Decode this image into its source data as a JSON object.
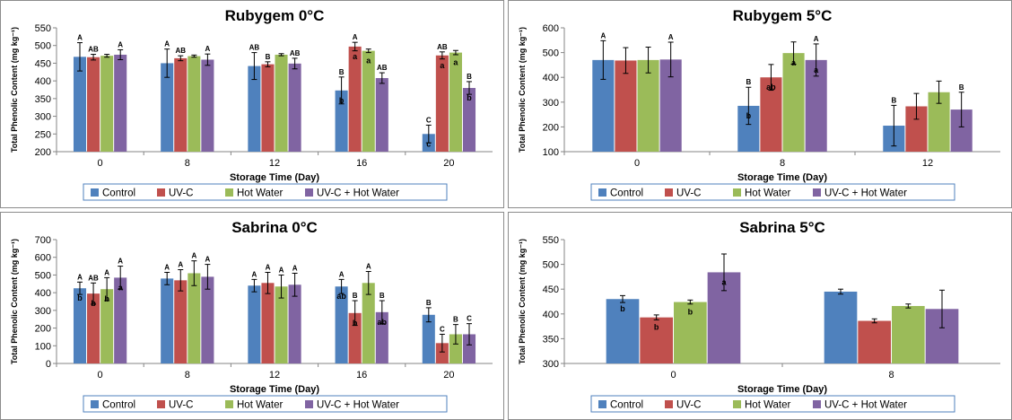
{
  "colors": {
    "Control": "#4F81BD",
    "UV-C": "#C0504D",
    "Hot Water": "#9BBB59",
    "UV-C + Hot Water": "#8064A2"
  },
  "chart_data": [
    {
      "type": "bar",
      "title": "Rubygem 0°C",
      "xlabel": "Storage Time (Day)",
      "ylabel": "Total Phenolic Content (mg kg⁻¹)",
      "ylim": [
        200,
        550
      ],
      "yticks": [
        200,
        250,
        300,
        350,
        400,
        450,
        500,
        550
      ],
      "categories": [
        "0",
        "8",
        "12",
        "16",
        "20"
      ],
      "legend": "bottom",
      "grid": false,
      "series": [
        {
          "name": "Control",
          "values": [
            468,
            450,
            442,
            373,
            250
          ],
          "errors": [
            40,
            40,
            38,
            38,
            25
          ],
          "top_labels": [
            "A",
            "A",
            "AB",
            "B",
            "C"
          ],
          "bottom_labels": [
            "",
            "",
            "",
            "b",
            "c"
          ]
        },
        {
          "name": "UV-C",
          "values": [
            467,
            464,
            447,
            497,
            472
          ],
          "errors": [
            8,
            7,
            7,
            12,
            10
          ],
          "top_labels": [
            "AB",
            "AB",
            "B",
            "A",
            "AB"
          ],
          "bottom_labels": [
            "",
            "",
            "",
            "a",
            "a"
          ]
        },
        {
          "name": "Hot Water",
          "values": [
            471,
            470,
            474,
            485,
            480
          ],
          "errors": [
            4,
            3,
            3,
            5,
            6
          ],
          "top_labels": [
            "",
            "",
            "",
            "",
            ""
          ],
          "bottom_labels": [
            "",
            "",
            "",
            "a",
            "a"
          ]
        },
        {
          "name": "UV-C + Hot Water",
          "values": [
            474,
            460,
            449,
            408,
            380
          ],
          "errors": [
            14,
            16,
            15,
            15,
            18
          ],
          "top_labels": [
            "A",
            "A",
            "AB",
            "AB",
            "B"
          ],
          "bottom_labels": [
            "",
            "",
            "",
            "",
            "b"
          ]
        }
      ]
    },
    {
      "type": "bar",
      "title": "Rubygem 5°C",
      "xlabel": "Storage Time (Day)",
      "ylabel": "Total Phenolic Content (mg kg⁻¹)",
      "ylim": [
        100,
        600
      ],
      "yticks": [
        100,
        200,
        300,
        400,
        500,
        600
      ],
      "categories": [
        "0",
        "8",
        "12"
      ],
      "legend": "bottom",
      "grid": false,
      "series": [
        {
          "name": "Control",
          "values": [
            470,
            285,
            205
          ],
          "errors": [
            78,
            75,
            82
          ],
          "top_labels": [
            "A",
            "B",
            "B"
          ],
          "bottom_labels": [
            "",
            "b",
            ""
          ]
        },
        {
          "name": "UV-C",
          "values": [
            468,
            400,
            283
          ],
          "errors": [
            52,
            52,
            52
          ],
          "top_labels": [
            "",
            "",
            ""
          ],
          "bottom_labels": [
            "",
            "ab",
            ""
          ]
        },
        {
          "name": "Hot Water",
          "values": [
            470,
            498,
            340
          ],
          "errors": [
            52,
            45,
            45
          ],
          "top_labels": [
            "",
            "",
            ""
          ],
          "bottom_labels": [
            "",
            "a",
            ""
          ]
        },
        {
          "name": "UV-C + Hot Water",
          "values": [
            472,
            470,
            270
          ],
          "errors": [
            70,
            65,
            70
          ],
          "top_labels": [
            "A",
            "A",
            "B"
          ],
          "bottom_labels": [
            "",
            "a",
            ""
          ]
        }
      ]
    },
    {
      "type": "bar",
      "title": "Sabrina 0°C",
      "xlabel": "Storage Time (Day)",
      "ylabel": "Total Phenolic Content (mg kg⁻¹)",
      "ylim": [
        0,
        700
      ],
      "yticks": [
        0,
        100,
        200,
        300,
        400,
        500,
        600,
        700
      ],
      "categories": [
        "0",
        "8",
        "12",
        "16",
        "20"
      ],
      "legend": "bottom",
      "grid": false,
      "series": [
        {
          "name": "Control",
          "values": [
            425,
            480,
            440,
            435,
            275
          ],
          "errors": [
            35,
            35,
            35,
            40,
            40
          ],
          "top_labels": [
            "A",
            "A",
            "A",
            "A",
            "B"
          ],
          "bottom_labels": [
            "b",
            "",
            "",
            "ab",
            ""
          ]
        },
        {
          "name": "UV-C",
          "values": [
            395,
            470,
            455,
            285,
            115
          ],
          "errors": [
            60,
            60,
            60,
            70,
            50
          ],
          "top_labels": [
            "AB",
            "A",
            "A",
            "B",
            "C"
          ],
          "bottom_labels": [
            "b",
            "",
            "",
            "b",
            ""
          ]
        },
        {
          "name": "Hot Water",
          "values": [
            420,
            510,
            435,
            455,
            165
          ],
          "errors": [
            65,
            70,
            65,
            65,
            55
          ],
          "top_labels": [
            "A",
            "A",
            "A",
            "A",
            "B"
          ],
          "bottom_labels": [
            "b",
            "",
            "",
            "",
            ""
          ]
        },
        {
          "name": "UV-C + Hot Water",
          "values": [
            485,
            490,
            445,
            290,
            165
          ],
          "errors": [
            65,
            70,
            65,
            65,
            60
          ],
          "top_labels": [
            "A",
            "A",
            "A",
            "B",
            "C"
          ],
          "bottom_labels": [
            "a",
            "",
            "",
            "ab",
            ""
          ]
        }
      ]
    },
    {
      "type": "bar",
      "title": "Sabrina 5°C",
      "xlabel": "Storage Time (Day)",
      "ylabel": "Total Phenolic Content (mg kg⁻¹)",
      "ylim": [
        300,
        550
      ],
      "yticks": [
        300,
        350,
        400,
        450,
        500,
        550
      ],
      "categories": [
        "0",
        "8"
      ],
      "legend": "bottom",
      "grid": false,
      "series": [
        {
          "name": "Control",
          "values": [
            430,
            445
          ],
          "errors": [
            7,
            5
          ],
          "top_labels": [
            "",
            ""
          ],
          "bottom_labels": [
            "b",
            ""
          ]
        },
        {
          "name": "UV-C",
          "values": [
            393,
            386
          ],
          "errors": [
            5,
            4
          ],
          "top_labels": [
            "",
            ""
          ],
          "bottom_labels": [
            "b",
            ""
          ]
        },
        {
          "name": "Hot Water",
          "values": [
            424,
            416
          ],
          "errors": [
            4,
            4
          ],
          "top_labels": [
            "",
            ""
          ],
          "bottom_labels": [
            "b",
            ""
          ]
        },
        {
          "name": "UV-C + Hot Water",
          "values": [
            484,
            410
          ],
          "errors": [
            37,
            38
          ],
          "top_labels": [
            "",
            ""
          ],
          "bottom_labels": [
            "a",
            ""
          ]
        }
      ]
    }
  ]
}
